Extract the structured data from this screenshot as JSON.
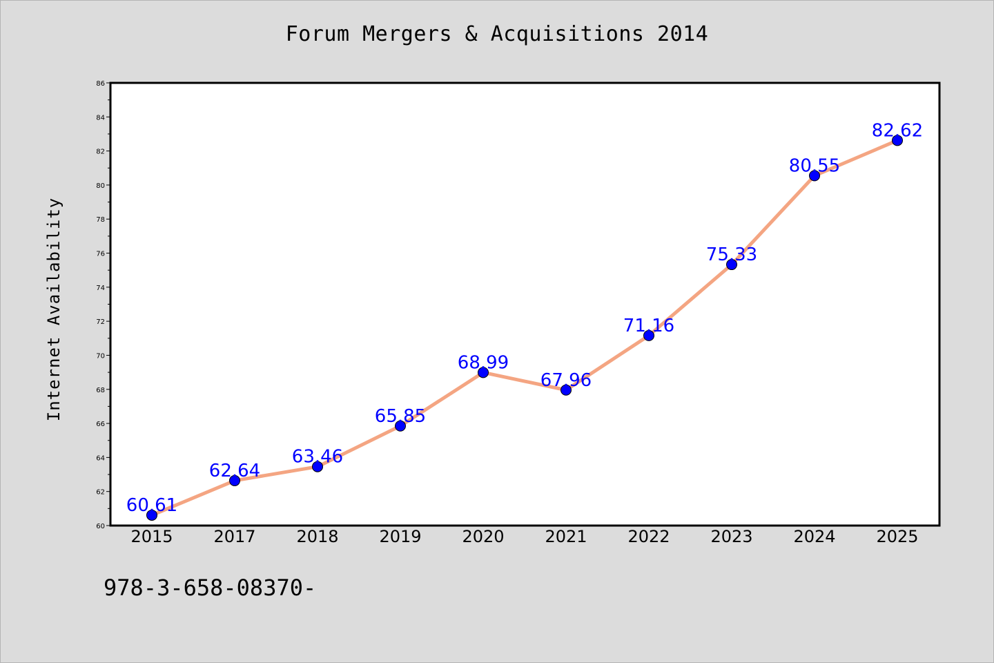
{
  "title": "Forum Mergers & Acquisitions 2014",
  "footer_text": "978-3-658-08370-",
  "colors": {
    "background": "#dcdcdc",
    "plot_background": "#ffffff",
    "line": "#f4a582",
    "marker": "#0000ff",
    "label": "#0000ff"
  },
  "chart_data": {
    "type": "line",
    "title": "Forum Mergers & Acquisitions 2014",
    "xlabel": "",
    "ylabel": "Internet Availability",
    "categories": [
      "2015",
      "2017",
      "2018",
      "2019",
      "2020",
      "2021",
      "2022",
      "2023",
      "2024",
      "2025"
    ],
    "series": [
      {
        "values": [
          60.61,
          62.64,
          63.46,
          65.85,
          68.99,
          67.96,
          71.16,
          75.33,
          80.55,
          82.62
        ]
      }
    ],
    "data_labels": [
      "60.61",
      "62.64",
      "63.46",
      "65.85",
      "68.99",
      "67.96",
      "71.16",
      "75.33",
      "80.55",
      "82.62"
    ],
    "ylim": [
      60,
      86
    ],
    "yticks": [
      60,
      62,
      64,
      66,
      68,
      70,
      72,
      74,
      76,
      78,
      80,
      82,
      84,
      86
    ],
    "grid": false,
    "legend": "none"
  }
}
